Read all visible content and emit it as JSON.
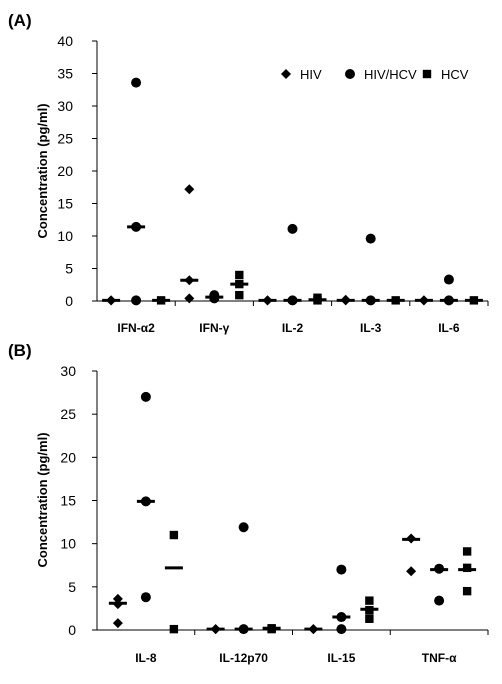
{
  "colors": {
    "ink": "#000000",
    "background": "#ffffff"
  },
  "chart_data": [
    {
      "panel": "(A)",
      "type": "scatter",
      "ylabel": "Concentration (pg/ml)",
      "ylim": [
        0,
        40
      ],
      "yticks": [
        0,
        5,
        10,
        15,
        20,
        25,
        30,
        35,
        40
      ],
      "categories": [
        "IFN-α2",
        "IFN-γ",
        "IL-2",
        "IL-3",
        "IL-6"
      ],
      "legend": {
        "position": "top-right",
        "entries": [
          "HIV",
          "HIV/HCV",
          "HCV"
        ]
      },
      "series": [
        {
          "name": "HIV",
          "marker": "diamond",
          "points": [
            [
              0,
              0.1
            ],
            [
              0,
              0.1
            ],
            [
              1,
              17.2
            ],
            [
              1,
              3.2
            ],
            [
              1,
              0.4
            ],
            [
              2,
              0.1
            ],
            [
              2,
              0.1
            ],
            [
              3,
              0.2
            ],
            [
              3,
              0.1
            ],
            [
              4,
              0.1
            ],
            [
              4,
              0.1
            ]
          ],
          "medians": [
            0.1,
            3.2,
            0.1,
            0.1,
            0.1
          ]
        },
        {
          "name": "HIV/HCV",
          "marker": "circle",
          "points": [
            [
              0,
              33.6
            ],
            [
              0,
              11.4
            ],
            [
              0,
              0.1
            ],
            [
              1,
              0.9
            ],
            [
              1,
              0.4
            ],
            [
              2,
              11.1
            ],
            [
              2,
              0.1
            ],
            [
              3,
              9.6
            ],
            [
              3,
              0.1
            ],
            [
              4,
              3.3
            ],
            [
              4,
              0.1
            ]
          ],
          "medians": [
            11.4,
            0.6,
            0.1,
            0.1,
            0.1
          ]
        },
        {
          "name": "HCV",
          "marker": "square",
          "points": [
            [
              0,
              0.1
            ],
            [
              1,
              4.0
            ],
            [
              1,
              2.6
            ],
            [
              1,
              0.9
            ],
            [
              2,
              0.5
            ],
            [
              2,
              0.1
            ],
            [
              3,
              0.1
            ],
            [
              4,
              0.1
            ]
          ],
          "medians": [
            0.1,
            2.6,
            0.2,
            0.1,
            0.1
          ]
        }
      ]
    },
    {
      "panel": "(B)",
      "type": "scatter",
      "ylabel": "Concentration (pg/ml)",
      "ylim": [
        0,
        30
      ],
      "yticks": [
        0,
        5,
        10,
        15,
        20,
        25,
        30
      ],
      "categories": [
        "IL-8",
        "IL-12p70",
        "IL-15",
        "TNF-α"
      ],
      "series": [
        {
          "name": "HIV",
          "marker": "diamond",
          "points": [
            [
              0,
              3.6
            ],
            [
              0,
              3.0
            ],
            [
              0,
              0.8
            ],
            [
              1,
              0.1
            ],
            [
              1,
              0.1
            ],
            [
              2,
              0.1
            ],
            [
              2,
              0.1
            ],
            [
              3,
              10.6
            ],
            [
              3,
              6.8
            ]
          ],
          "medians": [
            3.1,
            0.1,
            0.1,
            10.5
          ]
        },
        {
          "name": "HIV/HCV",
          "marker": "circle",
          "points": [
            [
              0,
              27.0
            ],
            [
              0,
              14.9
            ],
            [
              0,
              3.8
            ],
            [
              1,
              11.9
            ],
            [
              1,
              0.1
            ],
            [
              2,
              7.0
            ],
            [
              2,
              1.5
            ],
            [
              2,
              0.1
            ],
            [
              3,
              7.1
            ],
            [
              3,
              3.4
            ]
          ],
          "medians": [
            14.9,
            0.1,
            1.5,
            7.0
          ]
        },
        {
          "name": "HCV",
          "marker": "square",
          "points": [
            [
              0,
              11.0
            ],
            [
              0,
              0.1
            ],
            [
              1,
              0.2
            ],
            [
              1,
              0.1
            ],
            [
              2,
              3.4
            ],
            [
              2,
              2.3
            ],
            [
              2,
              1.3
            ],
            [
              3,
              9.1
            ],
            [
              3,
              7.2
            ],
            [
              3,
              4.5
            ]
          ],
          "medians": [
            7.2,
            0.2,
            2.4,
            7.0
          ]
        }
      ]
    }
  ]
}
